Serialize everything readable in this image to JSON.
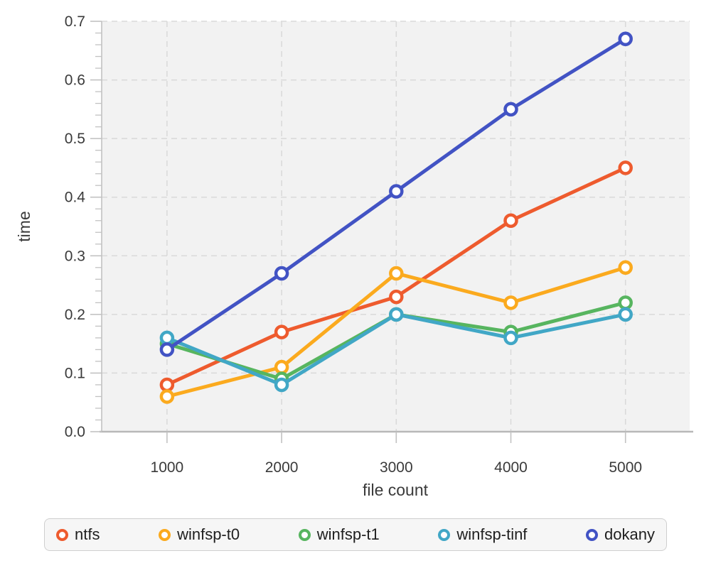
{
  "page": {
    "background": "#ffffff"
  },
  "chart_data": {
    "type": "line",
    "title": "",
    "xlabel": "file count",
    "ylabel": "time",
    "x": [
      1000,
      2000,
      3000,
      4000,
      5000
    ],
    "xlim": [
      430,
      5560
    ],
    "ylim": [
      0.0,
      0.7
    ],
    "x_ticks": [
      1000,
      2000,
      3000,
      4000,
      5000
    ],
    "y_major_ticks": [
      0.0,
      0.1,
      0.2,
      0.3,
      0.4,
      0.5,
      0.6,
      0.7
    ],
    "y_minor_step": 0.02,
    "grid": "dashed horizontal and vertical",
    "legend_position": "bottom",
    "marker": "open-circle",
    "series": [
      {
        "name": "ntfs",
        "color": "#ee5b2e",
        "values": [
          0.08,
          0.17,
          0.23,
          0.36,
          0.45
        ]
      },
      {
        "name": "winfsp-t0",
        "color": "#fbaa1e",
        "values": [
          0.06,
          0.11,
          0.27,
          0.22,
          0.28
        ]
      },
      {
        "name": "winfsp-t1",
        "color": "#57b55f",
        "values": [
          0.15,
          0.09,
          0.2,
          0.17,
          0.22
        ]
      },
      {
        "name": "winfsp-tinf",
        "color": "#41a7c6",
        "values": [
          0.16,
          0.08,
          0.2,
          0.16,
          0.2
        ]
      },
      {
        "name": "dokany",
        "color": "#4253c4",
        "values": [
          0.14,
          0.27,
          0.41,
          0.55,
          0.67
        ]
      }
    ]
  },
  "axes": {
    "text_color": "#3a3a3a",
    "tick_color": "#c2c2c2",
    "x_axis_line_color": "#b8b8b8",
    "grid_color": "#d9d9d9",
    "plot_bg": "#f2f2f2",
    "legend_border": "#cfcfcf",
    "legend_bg": "#f6f6f6"
  }
}
